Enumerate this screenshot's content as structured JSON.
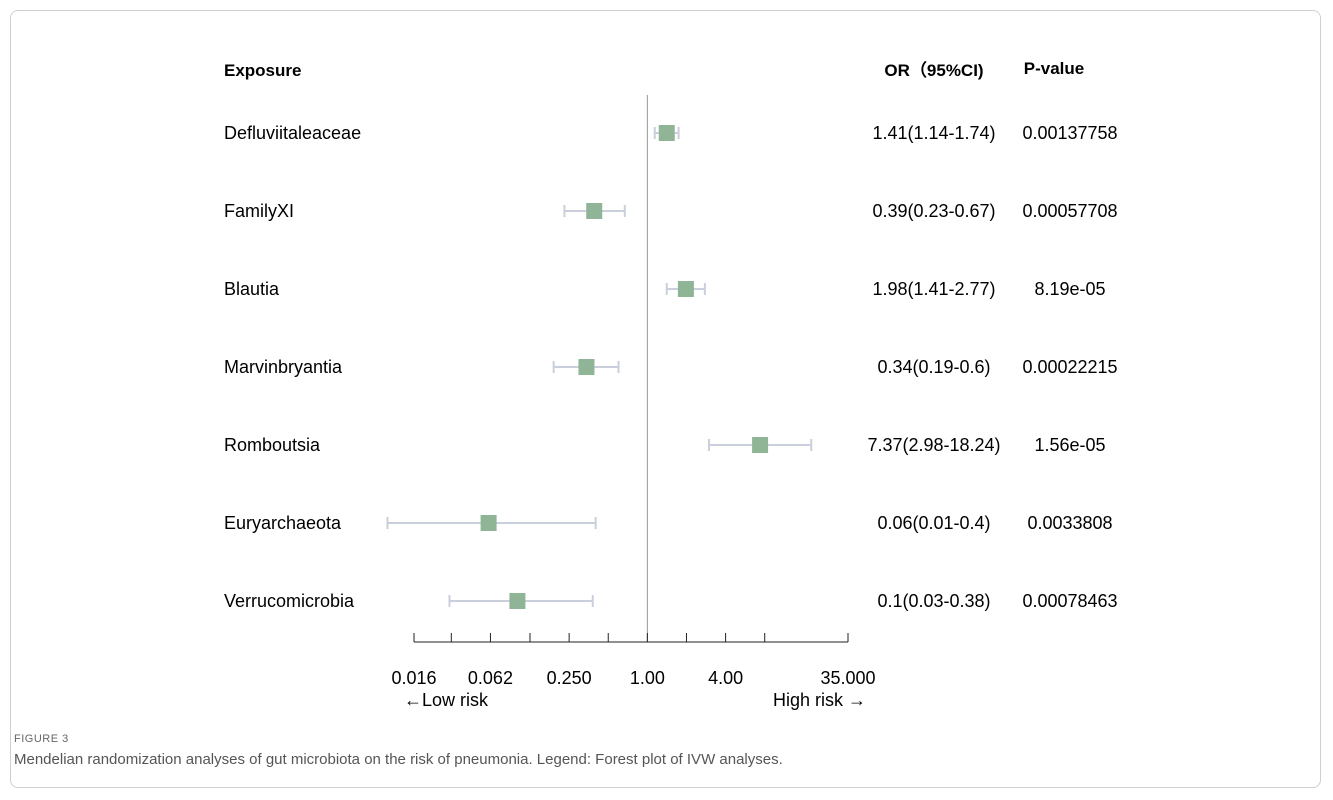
{
  "figure": {
    "label": "FIGURE 3",
    "caption": "Mendelian randomization analyses of gut microbiota on the risk of pneumonia. Legend: Forest plot of IVW analyses."
  },
  "chart_data": {
    "type": "forest",
    "scale": "log",
    "reference_value": 1.0,
    "xlim": [
      0.016,
      35.0
    ],
    "headers": {
      "exposure": "Exposure",
      "or": "OR（95%CI)",
      "pvalue": "P-value"
    },
    "rows": [
      {
        "exposure": "Defluviitaleaceae",
        "or": 1.41,
        "lo": 1.14,
        "hi": 1.74,
        "or_text": "1.41(1.14-1.74)",
        "p_text": "0.00137758"
      },
      {
        "exposure": "FamilyXI",
        "or": 0.39,
        "lo": 0.23,
        "hi": 0.67,
        "or_text": "0.39(0.23-0.67)",
        "p_text": "0.00057708"
      },
      {
        "exposure": "Blautia",
        "or": 1.98,
        "lo": 1.41,
        "hi": 2.77,
        "or_text": "1.98(1.41-2.77)",
        "p_text": "8.19e-05"
      },
      {
        "exposure": "Marvinbryantia",
        "or": 0.34,
        "lo": 0.19,
        "hi": 0.6,
        "or_text": "0.34(0.19-0.6)",
        "p_text": "0.00022215"
      },
      {
        "exposure": "Romboutsia",
        "or": 7.37,
        "lo": 2.98,
        "hi": 18.24,
        "or_text": "7.37(2.98-18.24)",
        "p_text": "1.56e-05"
      },
      {
        "exposure": "Euryarchaeota",
        "or": 0.06,
        "lo": 0.01,
        "hi": 0.4,
        "or_text": "0.06(0.01-0.4)",
        "p_text": "0.0033808"
      },
      {
        "exposure": "Verrucomicrobia",
        "or": 0.1,
        "lo": 0.03,
        "hi": 0.38,
        "or_text": "0.1(0.03-0.38)",
        "p_text": "0.00078463"
      }
    ],
    "x_ticks": [
      0.016,
      0.031,
      0.062,
      0.125,
      0.25,
      0.5,
      1.0,
      2.0,
      4.0,
      8.0,
      35.0
    ],
    "x_tick_labels": [
      {
        "value": 0.016,
        "label": "0.016"
      },
      {
        "value": 0.062,
        "label": "0.062"
      },
      {
        "value": 0.25,
        "label": "0.250"
      },
      {
        "value": 1.0,
        "label": "1.00"
      },
      {
        "value": 4.0,
        "label": "4.00"
      },
      {
        "value": 35.0,
        "label": "35.000"
      }
    ],
    "low_risk_label": "←Low risk",
    "high_risk_label": "High risk →",
    "colors": {
      "marker": "#8fb596",
      "ci_line": "#c9cfdc",
      "reference_line": "#999999",
      "axis": "#222222"
    }
  }
}
